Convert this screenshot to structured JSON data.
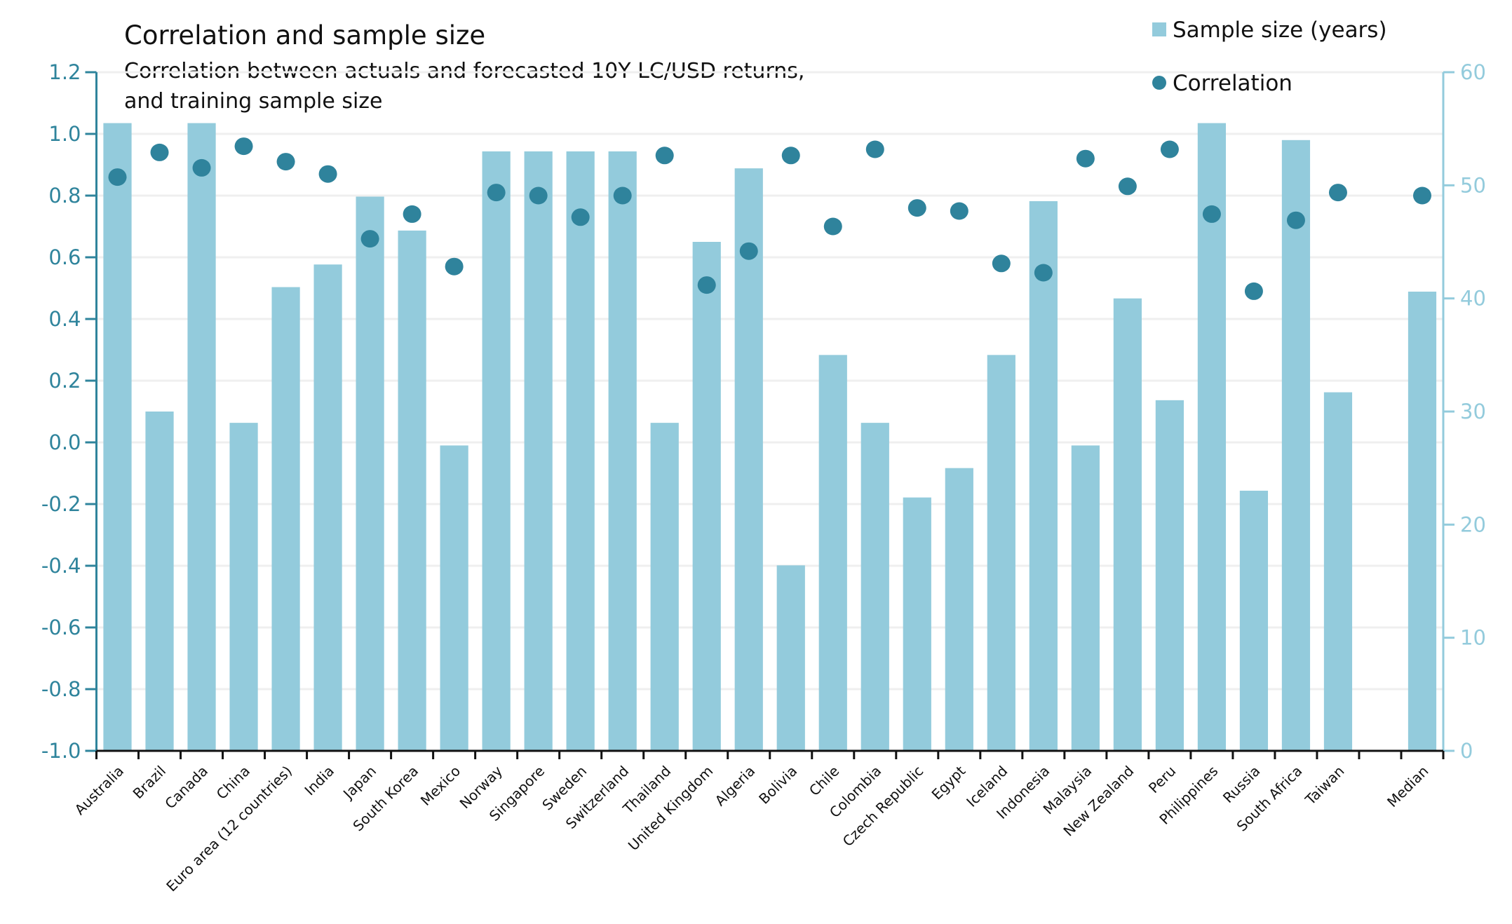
{
  "chart_data": {
    "type": "bar",
    "title": "Correlation and sample size",
    "subtitle_lines": [
      "Correlation between actuals and forecasted 10Y LC/USD returns,",
      "and training sample size"
    ],
    "categories": [
      "Australia",
      "Brazil",
      "Canada",
      "China",
      "Euro area (12 countries)",
      "India",
      "Japan",
      "South Korea",
      "Mexico",
      "Norway",
      "Singapore",
      "Sweden",
      "Switzerland",
      "Thailand",
      "United Kingdom",
      "Algeria",
      "Bolivia",
      "Chile",
      "Colombia",
      "Czech Republic",
      "Egypt",
      "Iceland",
      "Indonesia",
      "Malaysia",
      "New Zealand",
      "Peru",
      "Philippines",
      "Russia",
      "South Africa",
      "Taiwan",
      "",
      "Median"
    ],
    "series": [
      {
        "name": "Sample size (years)",
        "type": "bar",
        "axis": "right",
        "color": "#93cbdc",
        "values": [
          55.5,
          30,
          55.5,
          29,
          41,
          43,
          49,
          46,
          27,
          53,
          53,
          53,
          53,
          29,
          45,
          51.5,
          16.4,
          35,
          29,
          22.4,
          25,
          35,
          48.6,
          27,
          40,
          31,
          55.5,
          23,
          54,
          31.7,
          null,
          40.6
        ]
      },
      {
        "name": "Correlation",
        "type": "scatter",
        "axis": "left",
        "color": "#2f839c",
        "values": [
          0.86,
          0.94,
          0.89,
          0.96,
          0.91,
          0.87,
          0.66,
          0.74,
          0.57,
          0.81,
          0.8,
          0.73,
          0.8,
          0.93,
          0.51,
          0.62,
          0.93,
          0.7,
          0.95,
          0.76,
          0.75,
          0.58,
          0.55,
          0.92,
          0.83,
          0.95,
          0.74,
          0.49,
          0.72,
          0.81,
          null,
          0.8
        ]
      }
    ],
    "left_axis": {
      "ylim": [
        -1.0,
        1.2
      ],
      "ticks": [
        "-1.0",
        "-0.8",
        "-0.6",
        "-0.4",
        "-0.2",
        "0.0",
        "0.2",
        "0.4",
        "0.6",
        "0.8",
        "1.0",
        "1.2"
      ]
    },
    "right_axis": {
      "ylim": [
        0,
        60
      ],
      "ticks": [
        "0",
        "10",
        "20",
        "30",
        "40",
        "50",
        "60"
      ]
    },
    "legend": {
      "placement": "top-right",
      "items": [
        "Sample size (years)",
        "Correlation"
      ]
    },
    "grid": true,
    "colors": {
      "bar": "#93cbdc",
      "dot": "#2f839c",
      "left_axis": "#2f849c",
      "right_axis": "#93cbdc",
      "grid": "#efefef"
    }
  }
}
